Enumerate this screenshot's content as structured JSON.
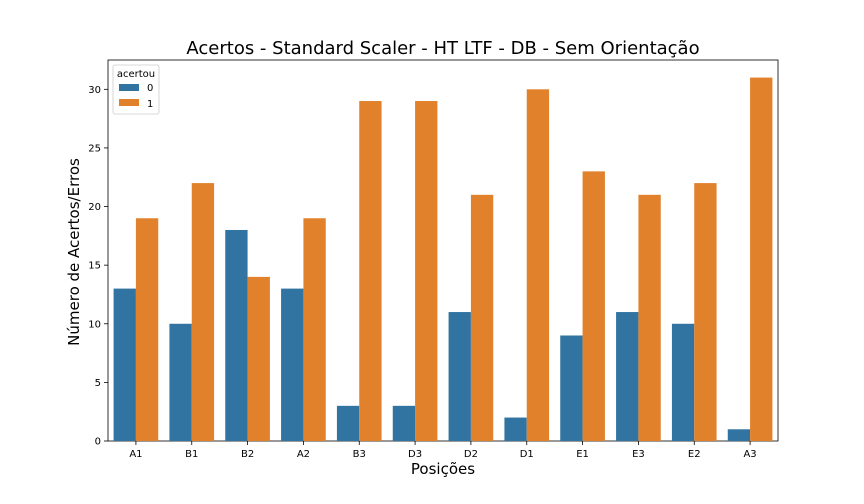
{
  "chart_data": {
    "type": "bar",
    "title": "Acertos - Standard Scaler - HT LTF - DB - Sem Orientação",
    "xlabel": "Posições",
    "ylabel": "Número de Acertos/Erros",
    "categories": [
      "A1",
      "B1",
      "B2",
      "A2",
      "B3",
      "D3",
      "D2",
      "D1",
      "E1",
      "E3",
      "E2",
      "A3"
    ],
    "series": [
      {
        "name": "0",
        "color": "#3274a1",
        "values": [
          13,
          10,
          18,
          13,
          3,
          3,
          11,
          2,
          9,
          11,
          10,
          1
        ]
      },
      {
        "name": "1",
        "color": "#e1812c",
        "values": [
          19,
          22,
          14,
          19,
          29,
          29,
          21,
          30,
          23,
          21,
          22,
          31
        ]
      }
    ],
    "ylim": [
      0,
      32.5
    ],
    "yticks": [
      "0",
      "5",
      "10",
      "15",
      "20",
      "25",
      "30"
    ],
    "legend": {
      "title": "acertou",
      "position": "top-left"
    },
    "grid": false
  }
}
